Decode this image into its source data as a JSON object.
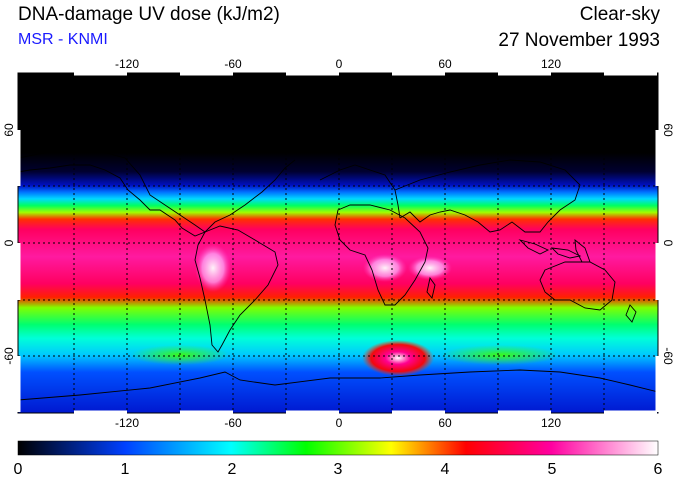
{
  "header": {
    "title": "DNA-damage UV dose (kJ/m2)",
    "subtitle": "MSR - KNMI",
    "condition": "Clear-sky",
    "date": "27 November 1993"
  },
  "colors": {
    "subtitle": "#1a1aff",
    "frame": "#000000",
    "grid": "#000000",
    "coast": "#000000"
  },
  "map": {
    "projection": "plate-carree",
    "lon_ticks": [
      "-120",
      "-60",
      "0",
      "60",
      "120"
    ],
    "lat_ticks": [
      "60",
      "0",
      "-60"
    ],
    "lon_range": [
      -180,
      180
    ],
    "lat_range": [
      -90,
      90
    ],
    "grid_lines": "dotted",
    "grid_step_deg": 30
  },
  "colorbar": {
    "ticks": [
      "0",
      "1",
      "2",
      "3",
      "4",
      "5",
      "6"
    ],
    "range": [
      0,
      6
    ],
    "stops": [
      {
        "value": 0.0,
        "color": "#000000"
      },
      {
        "value": 1.0,
        "color": "#0040ff"
      },
      {
        "value": 2.0,
        "color": "#00ffff"
      },
      {
        "value": 2.7,
        "color": "#00ff00"
      },
      {
        "value": 3.5,
        "color": "#ffff00"
      },
      {
        "value": 4.2,
        "color": "#ff0000"
      },
      {
        "value": 5.0,
        "color": "#ff00a0"
      },
      {
        "value": 6.0,
        "color": "#ffffff"
      }
    ]
  }
}
